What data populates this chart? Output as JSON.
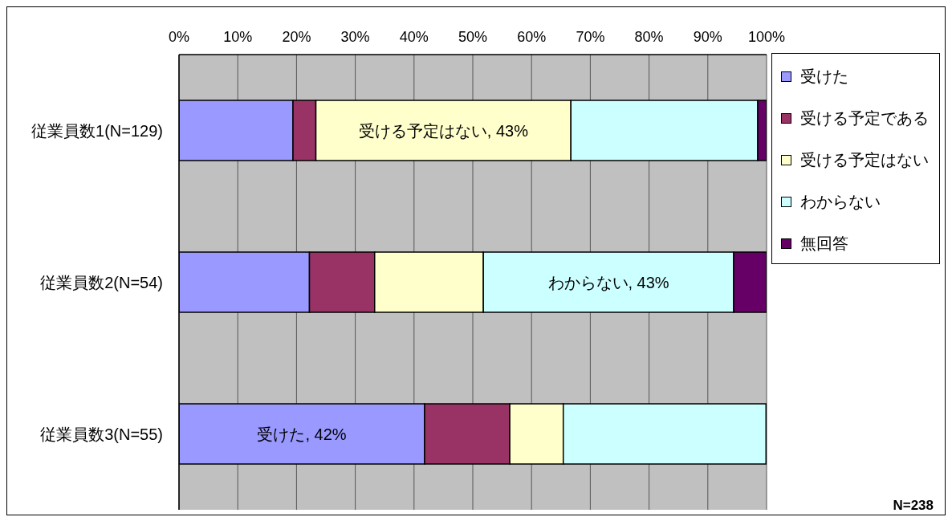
{
  "chart_data": {
    "type": "bar",
    "orientation": "horizontal",
    "stacked": true,
    "categories": [
      "従業員数1(N=129)",
      "従業員数2(N=54)",
      "従業員数3(N=55)"
    ],
    "series": [
      {
        "name": "受けた",
        "color": "#9999ff",
        "values": [
          19.4,
          22.2,
          41.8
        ],
        "value_labels": [
          null,
          null,
          "受けた, 42%"
        ]
      },
      {
        "name": "受ける予定である",
        "color": "#993366",
        "values": [
          3.9,
          11.1,
          14.5
        ]
      },
      {
        "name": "受ける予定はない",
        "color": "#ffffcc",
        "values": [
          43.4,
          18.5,
          9.1
        ],
        "value_labels": [
          "受ける予定はない, 43%",
          null,
          null
        ]
      },
      {
        "name": "わからない",
        "color": "#ccffff",
        "values": [
          31.8,
          42.6,
          34.5
        ],
        "value_labels": [
          null,
          "わからない, 43%",
          null
        ]
      },
      {
        "name": "無回答",
        "color": "#660066",
        "values": [
          1.6,
          5.6,
          0
        ]
      }
    ],
    "xlim": [
      0,
      100
    ],
    "xticks": [
      {
        "value": 0,
        "label": "0%"
      },
      {
        "value": 10,
        "label": "10%"
      },
      {
        "value": 20,
        "label": "20%"
      },
      {
        "value": 30,
        "label": "30%"
      },
      {
        "value": 40,
        "label": "40%"
      },
      {
        "value": 50,
        "label": "50%"
      },
      {
        "value": 60,
        "label": "60%"
      },
      {
        "value": 70,
        "label": "70%"
      },
      {
        "value": 80,
        "label": "80%"
      },
      {
        "value": 90,
        "label": "90%"
      },
      {
        "value": 100,
        "label": "100%"
      }
    ],
    "grid": "x",
    "legend": "right",
    "annotations": [
      "N=238"
    ]
  }
}
